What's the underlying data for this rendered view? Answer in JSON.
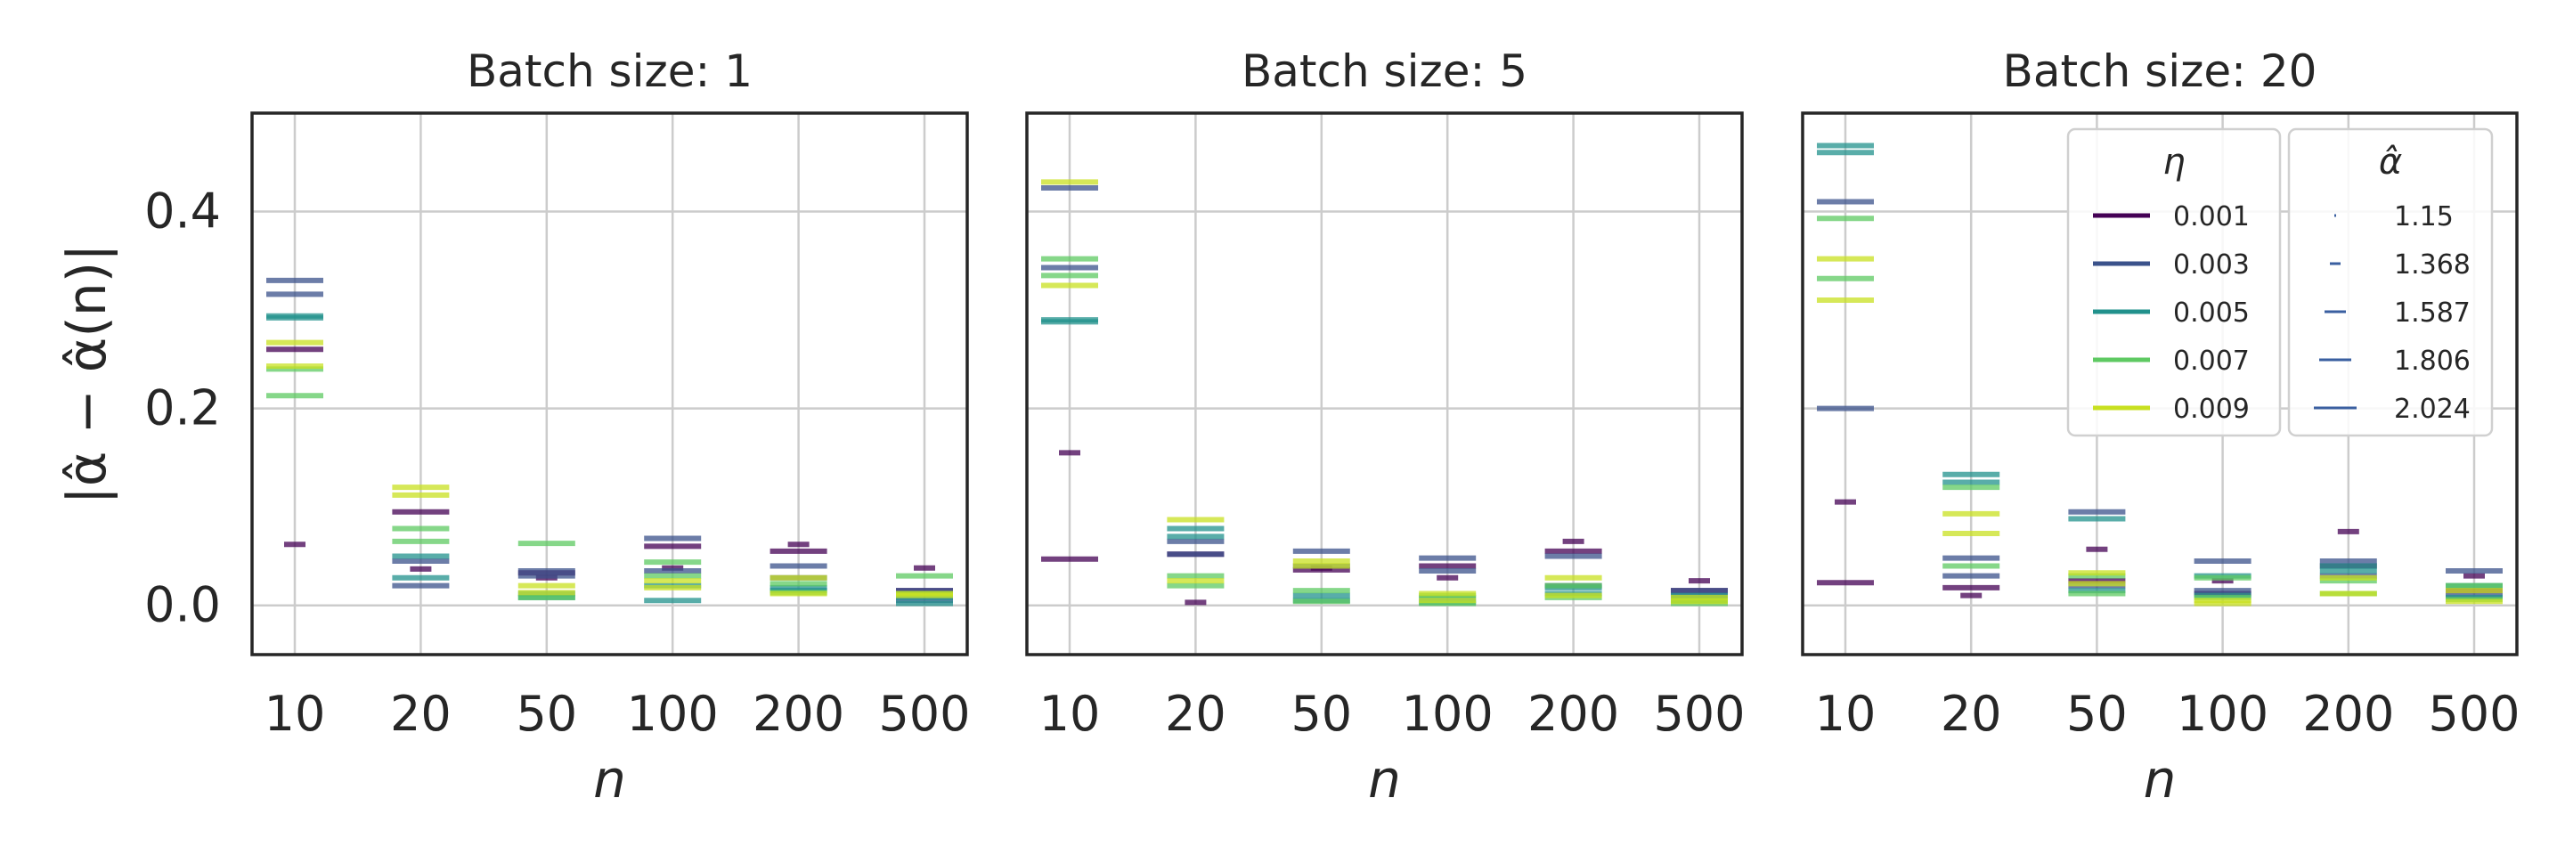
{
  "colors": {
    "0.001": "#440154",
    "0.003": "#3b528b",
    "0.005": "#21918c",
    "0.007": "#5ec962",
    "0.009": "#c8e020",
    "alpha_marker": "#3a5fa0"
  },
  "ylabel": "|α̂ − α̂(n)|",
  "legend": {
    "eta_title": "η",
    "eta_entries": [
      "0.001",
      "0.003",
      "0.005",
      "0.007",
      "0.009"
    ],
    "alpha_title": "α̂",
    "alpha_entries": [
      "1.15",
      "1.368",
      "1.587",
      "1.806",
      "2.024"
    ]
  },
  "chart_data": [
    {
      "type": "scatter",
      "title": "Batch size: 1",
      "xlabel": "n",
      "categories": [
        "10",
        "20",
        "50",
        "100",
        "200",
        "500"
      ],
      "ylim": [
        -0.05,
        0.5
      ],
      "yticks": [
        0.0,
        0.2,
        0.4
      ],
      "grid": true,
      "series": [
        {
          "name": "0.001",
          "values": [
            [
              0.062,
              0.26
            ],
            [
              0.037,
              0.095
            ],
            [
              0.028,
              0.033
            ],
            [
              0.038,
              0.06
            ],
            [
              0.062,
              0.055
            ],
            [
              0.038,
              0.015
            ]
          ]
        },
        {
          "name": "0.003",
          "values": [
            [
              0.33,
              0.316
            ],
            [
              0.02,
              0.045
            ],
            [
              0.035,
              0.03
            ],
            [
              0.068,
              0.035
            ],
            [
              0.04,
              0.028
            ],
            [
              0.015,
              0.005
            ]
          ]
        },
        {
          "name": "0.005",
          "values": [
            [
              0.292,
              0.294
            ],
            [
              0.028,
              0.05
            ],
            [
              0.012,
              0.008
            ],
            [
              0.02,
              0.005
            ],
            [
              0.018,
              0.015
            ],
            [
              0.002,
              0.008
            ]
          ]
        },
        {
          "name": "0.007",
          "values": [
            [
              0.213,
              0.24
            ],
            [
              0.078,
              0.065
            ],
            [
              0.063,
              0.008
            ],
            [
              0.044,
              0.03
            ],
            [
              0.022,
              0.013
            ],
            [
              0.03,
              0.012
            ]
          ]
        },
        {
          "name": "0.009",
          "values": [
            [
              0.267,
              0.243
            ],
            [
              0.12,
              0.112
            ],
            [
              0.02,
              0.013
            ],
            [
              0.025,
              0.018
            ],
            [
              0.028,
              0.012
            ],
            [
              0.012,
              0.01
            ]
          ]
        }
      ]
    },
    {
      "type": "scatter",
      "title": "Batch size: 5",
      "xlabel": "n",
      "categories": [
        "10",
        "20",
        "50",
        "100",
        "200",
        "500"
      ],
      "ylim": [
        -0.05,
        0.5
      ],
      "yticks": [
        0.0,
        0.2,
        0.4
      ],
      "grid": true,
      "series": [
        {
          "name": "0.001",
          "values": [
            [
              0.155,
              0.047
            ],
            [
              0.003,
              0.052
            ],
            [
              0.038,
              0.036
            ],
            [
              0.028,
              0.04
            ],
            [
              0.065,
              0.055
            ],
            [
              0.025,
              0.015
            ]
          ]
        },
        {
          "name": "0.003",
          "values": [
            [
              0.424,
              0.343
            ],
            [
              0.052,
              0.065
            ],
            [
              0.055,
              0.04
            ],
            [
              0.048,
              0.035
            ],
            [
              0.05,
              0.02
            ],
            [
              0.015,
              0.01
            ]
          ]
        },
        {
          "name": "0.005",
          "values": [
            [
              0.29,
              0.288
            ],
            [
              0.078,
              0.07
            ],
            [
              0.01,
              0.005
            ],
            [
              0.008,
              0.003
            ],
            [
              0.018,
              0.012
            ],
            [
              0.01,
              0.005
            ]
          ]
        },
        {
          "name": "0.007",
          "values": [
            [
              0.352,
              0.335
            ],
            [
              0.03,
              0.02
            ],
            [
              0.015,
              0.004
            ],
            [
              0.01,
              0.002
            ],
            [
              0.02,
              0.008
            ],
            [
              0.005,
              0.002
            ]
          ]
        },
        {
          "name": "0.009",
          "values": [
            [
              0.43,
              0.325
            ],
            [
              0.087,
              0.025
            ],
            [
              0.045,
              0.04
            ],
            [
              0.012,
              0.005
            ],
            [
              0.028,
              0.01
            ],
            [
              0.008,
              0.004
            ]
          ]
        }
      ]
    },
    {
      "type": "scatter",
      "title": "Batch size: 20",
      "xlabel": "n",
      "categories": [
        "10",
        "20",
        "50",
        "100",
        "200",
        "500"
      ],
      "ylim": [
        -0.05,
        0.5
      ],
      "yticks": [
        0.0,
        0.2,
        0.4
      ],
      "grid": true,
      "series": [
        {
          "name": "0.001",
          "values": [
            [
              0.105,
              0.023
            ],
            [
              0.01,
              0.018
            ],
            [
              0.057,
              0.025
            ],
            [
              0.025,
              0.012
            ],
            [
              0.075,
              0.04
            ],
            [
              0.03,
              0.015
            ]
          ]
        },
        {
          "name": "0.003",
          "values": [
            [
              0.41,
              0.2
            ],
            [
              0.048,
              0.03
            ],
            [
              0.095,
              0.02
            ],
            [
              0.045,
              0.015
            ],
            [
              0.045,
              0.03
            ],
            [
              0.035,
              0.01
            ]
          ]
        },
        {
          "name": "0.005",
          "values": [
            [
              0.467,
              0.46
            ],
            [
              0.133,
              0.125
            ],
            [
              0.088,
              0.015
            ],
            [
              0.03,
              0.01
            ],
            [
              0.04,
              0.035
            ],
            [
              0.02,
              0.008
            ]
          ]
        },
        {
          "name": "0.007",
          "values": [
            [
              0.393,
              0.332
            ],
            [
              0.12,
              0.04
            ],
            [
              0.03,
              0.012
            ],
            [
              0.028,
              0.008
            ],
            [
              0.025,
              0.012
            ],
            [
              0.02,
              0.006
            ]
          ]
        },
        {
          "name": "0.009",
          "values": [
            [
              0.352,
              0.31
            ],
            [
              0.093,
              0.073
            ],
            [
              0.033,
              0.022
            ],
            [
              0.005,
              0.002
            ],
            [
              0.028,
              0.012
            ],
            [
              0.015,
              0.004
            ]
          ]
        }
      ]
    }
  ]
}
